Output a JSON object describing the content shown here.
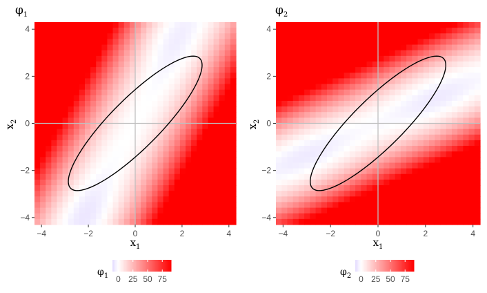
{
  "chart_data": [
    {
      "type": "heatmap",
      "title": "φ1",
      "title_main": "φ",
      "title_sub": "1",
      "xlabel_main": "x",
      "xlabel_sub": "1",
      "ylabel_main": "x",
      "ylabel_sub": "2",
      "xlim": [
        -4.3,
        4.3
      ],
      "ylim": [
        -4.3,
        4.3
      ],
      "x_ticks": [
        -4,
        -2,
        0,
        2,
        4
      ],
      "y_ticks": [
        -4,
        -2,
        0,
        2,
        4
      ],
      "x_tick_labels": [
        "−4",
        "−2",
        "0",
        "2",
        "4"
      ],
      "y_tick_labels": [
        "−4",
        "−2",
        "0",
        "2",
        "4"
      ],
      "field": "phi1",
      "reference_lines": {
        "x": 0,
        "y": 0
      },
      "ellipse": {
        "center": [
          0,
          0
        ],
        "semi_major": 3.9,
        "semi_minor": 1.05,
        "angle_deg": 45
      },
      "legend": {
        "title_main": "φ",
        "title_sub": "1",
        "position": "bottom",
        "breaks": [
          0,
          25,
          50,
          75
        ],
        "labels": [
          "0",
          "25",
          "50",
          "75"
        ],
        "range": [
          -10,
          90
        ]
      }
    },
    {
      "type": "heatmap",
      "title": "φ2",
      "title_main": "φ",
      "title_sub": "2",
      "xlabel_main": "x",
      "xlabel_sub": "1",
      "ylabel_main": "x",
      "ylabel_sub": "2",
      "xlim": [
        -4.3,
        4.3
      ],
      "ylim": [
        -4.3,
        4.3
      ],
      "x_ticks": [
        -4,
        -2,
        0,
        2,
        4
      ],
      "y_ticks": [
        -4,
        -2,
        0,
        2,
        4
      ],
      "x_tick_labels": [
        "−4",
        "−2",
        "0",
        "2",
        "4"
      ],
      "y_tick_labels": [
        "−4",
        "−2",
        "0",
        "2",
        "4"
      ],
      "field": "phi2",
      "reference_lines": {
        "x": 0,
        "y": 0
      },
      "ellipse": {
        "center": [
          0,
          0
        ],
        "semi_major": 3.9,
        "semi_minor": 1.05,
        "angle_deg": 45
      },
      "legend": {
        "title_main": "φ",
        "title_sub": "2",
        "position": "bottom",
        "breaks": [
          0,
          25,
          50,
          75
        ],
        "labels": [
          "0",
          "25",
          "50",
          "75"
        ],
        "range": [
          -10,
          90
        ]
      }
    }
  ],
  "colors": {
    "low": "#e4dcff",
    "mid": "#ffffff",
    "high": "#ff0000",
    "ellipse": "#000000",
    "reference": "#bfbfbf"
  }
}
